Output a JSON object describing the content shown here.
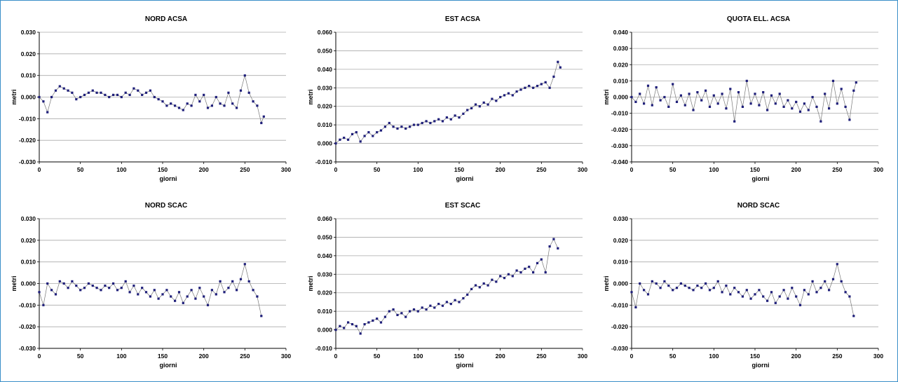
{
  "colors": {
    "frame": "#3a8fc8",
    "marker": "#1f1f7a",
    "line": "#777777",
    "grid": "#aaaaaa"
  },
  "chart_data": [
    {
      "type": "line",
      "title": "NORD ACSA",
      "xlabel": "giorni",
      "ylabel": "metri",
      "xlim": [
        0,
        300
      ],
      "ylim": [
        -0.03,
        0.03
      ],
      "xticks": [
        "0",
        "50",
        "100",
        "150",
        "200",
        "250",
        "300"
      ],
      "yticks": [
        "-0.030",
        "-0.020",
        "-0.010",
        "0.000",
        "0.010",
        "0.020",
        "0.030"
      ],
      "grid": true,
      "legend": "none",
      "series": [
        {
          "x": [
            0,
            5,
            10,
            15,
            20,
            25,
            30,
            35,
            40,
            45,
            50,
            55,
            60,
            65,
            70,
            75,
            80,
            85,
            90,
            95,
            100,
            105,
            110,
            115,
            120,
            125,
            130,
            135,
            140,
            145,
            150,
            155,
            160,
            165,
            170,
            175,
            180,
            185,
            190,
            195,
            200,
            205,
            210,
            215,
            220,
            225,
            230,
            235,
            240,
            245,
            250,
            255,
            260,
            265,
            270,
            273
          ],
          "y": [
            0.0,
            -0.002,
            -0.007,
            0.0,
            0.003,
            0.005,
            0.004,
            0.003,
            0.002,
            -0.001,
            0.0,
            0.001,
            0.002,
            0.003,
            0.002,
            0.002,
            0.001,
            0.0,
            0.001,
            0.001,
            0.0,
            0.002,
            0.001,
            0.004,
            0.003,
            0.001,
            0.002,
            0.003,
            0.0,
            -0.001,
            -0.002,
            -0.004,
            -0.003,
            -0.004,
            -0.005,
            -0.006,
            -0.003,
            -0.004,
            0.001,
            -0.002,
            0.001,
            -0.005,
            -0.004,
            0.0,
            -0.003,
            -0.004,
            0.002,
            -0.003,
            -0.005,
            0.003,
            0.01,
            0.002,
            -0.002,
            -0.004,
            -0.012,
            -0.009
          ]
        }
      ]
    },
    {
      "type": "line",
      "title": "EST ACSA",
      "xlabel": "giorni",
      "ylabel": "metri",
      "xlim": [
        0,
        300
      ],
      "ylim": [
        -0.01,
        0.06
      ],
      "xticks": [
        "0",
        "50",
        "100",
        "150",
        "200",
        "250",
        "300"
      ],
      "yticks": [
        "-0.010",
        "0.000",
        "0.010",
        "0.020",
        "0.030",
        "0.040",
        "0.050",
        "0.060"
      ],
      "grid": true,
      "legend": "none",
      "series": [
        {
          "x": [
            0,
            5,
            10,
            15,
            20,
            25,
            30,
            35,
            40,
            45,
            50,
            55,
            60,
            65,
            70,
            75,
            80,
            85,
            90,
            95,
            100,
            105,
            110,
            115,
            120,
            125,
            130,
            135,
            140,
            145,
            150,
            155,
            160,
            165,
            170,
            175,
            180,
            185,
            190,
            195,
            200,
            205,
            210,
            215,
            220,
            225,
            230,
            235,
            240,
            245,
            250,
            255,
            260,
            265,
            270,
            273
          ],
          "y": [
            0.0,
            0.002,
            0.003,
            0.002,
            0.005,
            0.006,
            0.001,
            0.004,
            0.006,
            0.004,
            0.006,
            0.007,
            0.009,
            0.011,
            0.009,
            0.008,
            0.009,
            0.008,
            0.009,
            0.01,
            0.01,
            0.011,
            0.012,
            0.011,
            0.012,
            0.013,
            0.012,
            0.014,
            0.013,
            0.015,
            0.014,
            0.016,
            0.018,
            0.019,
            0.021,
            0.02,
            0.022,
            0.021,
            0.024,
            0.023,
            0.025,
            0.026,
            0.027,
            0.026,
            0.028,
            0.029,
            0.03,
            0.031,
            0.03,
            0.031,
            0.032,
            0.033,
            0.03,
            0.036,
            0.044,
            0.041
          ]
        }
      ]
    },
    {
      "type": "line",
      "title": "QUOTA ELL. ACSA",
      "xlabel": "giorni",
      "ylabel": "metri",
      "xlim": [
        0,
        300
      ],
      "ylim": [
        -0.04,
        0.04
      ],
      "xticks": [
        "0",
        "50",
        "100",
        "150",
        "200",
        "250",
        "300"
      ],
      "yticks": [
        "-0.040",
        "-0.030",
        "-0.020",
        "-0.010",
        "0.000",
        "0.010",
        "0.020",
        "0.030",
        "0.040"
      ],
      "grid": true,
      "legend": "none",
      "series": [
        {
          "x": [
            0,
            5,
            10,
            15,
            20,
            25,
            30,
            35,
            40,
            45,
            50,
            55,
            60,
            65,
            70,
            75,
            80,
            85,
            90,
            95,
            100,
            105,
            110,
            115,
            120,
            125,
            130,
            135,
            140,
            145,
            150,
            155,
            160,
            165,
            170,
            175,
            180,
            185,
            190,
            195,
            200,
            205,
            210,
            215,
            220,
            225,
            230,
            235,
            240,
            245,
            250,
            255,
            260,
            265,
            270,
            273
          ],
          "y": [
            0.0,
            -0.003,
            0.002,
            -0.004,
            0.007,
            -0.005,
            0.006,
            -0.002,
            0.0,
            -0.006,
            0.008,
            -0.003,
            0.001,
            -0.005,
            0.002,
            -0.008,
            0.003,
            -0.002,
            0.004,
            -0.006,
            0.001,
            -0.004,
            0.002,
            -0.007,
            0.005,
            -0.015,
            0.003,
            -0.006,
            0.01,
            -0.004,
            0.002,
            -0.005,
            0.003,
            -0.008,
            0.001,
            -0.004,
            0.002,
            -0.006,
            -0.002,
            -0.007,
            -0.003,
            -0.009,
            -0.004,
            -0.008,
            0.0,
            -0.006,
            -0.015,
            0.002,
            -0.007,
            0.01,
            -0.004,
            0.005,
            -0.006,
            -0.014,
            0.004,
            0.009
          ]
        }
      ]
    },
    {
      "type": "line",
      "title": "NORD SCAC",
      "xlabel": "giorni",
      "ylabel": "metri",
      "xlim": [
        0,
        300
      ],
      "ylim": [
        -0.03,
        0.03
      ],
      "xticks": [
        "0",
        "50",
        "100",
        "150",
        "200",
        "250",
        "300"
      ],
      "yticks": [
        "-0.030",
        "-0.020",
        "-0.010",
        "0.000",
        "0.010",
        "0.020",
        "0.030"
      ],
      "grid": true,
      "legend": "none",
      "series": [
        {
          "x": [
            0,
            5,
            10,
            15,
            20,
            25,
            30,
            35,
            40,
            45,
            50,
            55,
            60,
            65,
            70,
            75,
            80,
            85,
            90,
            95,
            100,
            105,
            110,
            115,
            120,
            125,
            130,
            135,
            140,
            145,
            150,
            155,
            160,
            165,
            170,
            175,
            180,
            185,
            190,
            195,
            200,
            205,
            210,
            215,
            220,
            225,
            230,
            235,
            240,
            245,
            250,
            255,
            260,
            265,
            270
          ],
          "y": [
            -0.004,
            -0.01,
            0.0,
            -0.003,
            -0.005,
            0.001,
            0.0,
            -0.002,
            0.001,
            -0.001,
            -0.003,
            -0.002,
            0.0,
            -0.001,
            -0.002,
            -0.003,
            -0.001,
            -0.002,
            0.0,
            -0.003,
            -0.002,
            0.001,
            -0.004,
            -0.001,
            -0.005,
            -0.002,
            -0.004,
            -0.006,
            -0.003,
            -0.007,
            -0.005,
            -0.003,
            -0.006,
            -0.008,
            -0.004,
            -0.009,
            -0.006,
            -0.003,
            -0.007,
            -0.002,
            -0.006,
            -0.01,
            -0.003,
            -0.005,
            0.001,
            -0.004,
            -0.002,
            0.001,
            -0.003,
            0.002,
            0.009,
            0.001,
            -0.003,
            -0.006,
            -0.015
          ]
        }
      ]
    },
    {
      "type": "line",
      "title": "EST SCAC",
      "xlabel": "giorni",
      "ylabel": "metri",
      "xlim": [
        0,
        300
      ],
      "ylim": [
        -0.01,
        0.06
      ],
      "xticks": [
        "0",
        "50",
        "100",
        "150",
        "200",
        "250",
        "300"
      ],
      "yticks": [
        "-0.010",
        "0.000",
        "0.010",
        "0.020",
        "0.030",
        "0.040",
        "0.050",
        "0.060"
      ],
      "grid": true,
      "legend": "none",
      "series": [
        {
          "x": [
            0,
            5,
            10,
            15,
            20,
            25,
            30,
            35,
            40,
            45,
            50,
            55,
            60,
            65,
            70,
            75,
            80,
            85,
            90,
            95,
            100,
            105,
            110,
            115,
            120,
            125,
            130,
            135,
            140,
            145,
            150,
            155,
            160,
            165,
            170,
            175,
            180,
            185,
            190,
            195,
            200,
            205,
            210,
            215,
            220,
            225,
            230,
            235,
            240,
            245,
            250,
            255,
            260,
            265,
            270
          ],
          "y": [
            0.0,
            0.002,
            0.001,
            0.004,
            0.003,
            0.002,
            -0.002,
            0.003,
            0.004,
            0.005,
            0.006,
            0.004,
            0.007,
            0.01,
            0.011,
            0.008,
            0.009,
            0.007,
            0.01,
            0.011,
            0.01,
            0.012,
            0.011,
            0.013,
            0.012,
            0.014,
            0.013,
            0.015,
            0.014,
            0.016,
            0.015,
            0.017,
            0.019,
            0.022,
            0.024,
            0.023,
            0.025,
            0.024,
            0.027,
            0.026,
            0.029,
            0.028,
            0.03,
            0.029,
            0.032,
            0.031,
            0.033,
            0.034,
            0.031,
            0.036,
            0.038,
            0.031,
            0.045,
            0.049,
            0.044
          ]
        }
      ]
    },
    {
      "type": "line",
      "title": "NORD SCAC",
      "xlabel": "giorni",
      "ylabel": "metri",
      "xlim": [
        0,
        300
      ],
      "ylim": [
        -0.03,
        0.03
      ],
      "xticks": [
        "0",
        "50",
        "100",
        "150",
        "200",
        "250",
        "300"
      ],
      "yticks": [
        "-0.030",
        "-0.020",
        "-0.010",
        "0.000",
        "0.010",
        "0.020",
        "0.030"
      ],
      "grid": true,
      "legend": "none",
      "series": [
        {
          "x": [
            0,
            5,
            10,
            15,
            20,
            25,
            30,
            35,
            40,
            45,
            50,
            55,
            60,
            65,
            70,
            75,
            80,
            85,
            90,
            95,
            100,
            105,
            110,
            115,
            120,
            125,
            130,
            135,
            140,
            145,
            150,
            155,
            160,
            165,
            170,
            175,
            180,
            185,
            190,
            195,
            200,
            205,
            210,
            215,
            220,
            225,
            230,
            235,
            240,
            245,
            250,
            255,
            260,
            265,
            270
          ],
          "y": [
            -0.004,
            -0.011,
            0.0,
            -0.003,
            -0.005,
            0.001,
            0.0,
            -0.002,
            0.001,
            -0.001,
            -0.003,
            -0.002,
            0.0,
            -0.001,
            -0.002,
            -0.003,
            -0.001,
            -0.002,
            0.0,
            -0.003,
            -0.002,
            0.001,
            -0.004,
            -0.001,
            -0.005,
            -0.002,
            -0.004,
            -0.006,
            -0.003,
            -0.007,
            -0.005,
            -0.003,
            -0.006,
            -0.008,
            -0.004,
            -0.009,
            -0.006,
            -0.003,
            -0.007,
            -0.002,
            -0.006,
            -0.01,
            -0.003,
            -0.005,
            0.001,
            -0.004,
            -0.002,
            0.001,
            -0.003,
            0.002,
            0.009,
            0.001,
            -0.004,
            -0.006,
            -0.015
          ]
        }
      ]
    }
  ]
}
